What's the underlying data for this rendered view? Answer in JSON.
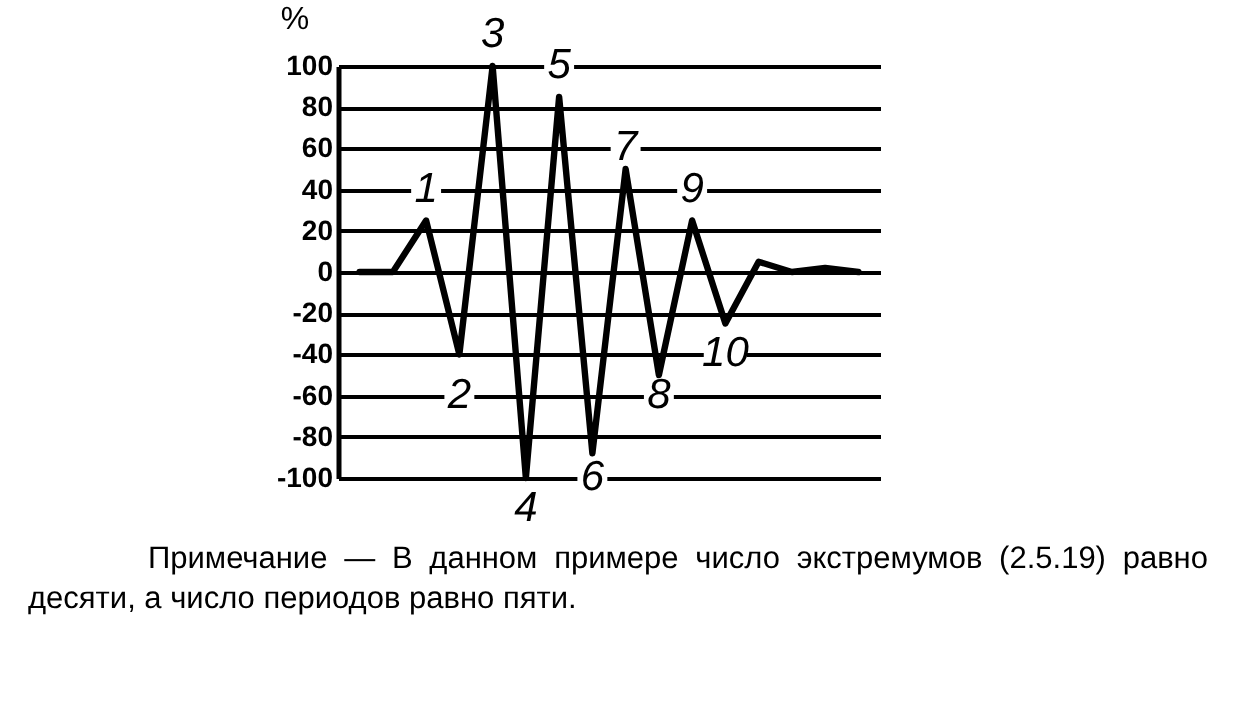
{
  "chart_data": {
    "type": "line",
    "ylabel": "%",
    "categories": [
      null,
      null,
      null,
      null,
      null,
      null,
      null,
      null,
      null,
      null,
      null,
      null,
      null,
      null,
      null,
      null
    ],
    "series": [
      {
        "color": "#000000",
        "values": [
          0,
          0,
          25,
          -40,
          100,
          -100,
          85,
          -88,
          50,
          -50,
          25,
          -25,
          5,
          0,
          2,
          0
        ]
      }
    ],
    "ylim": [
      -100,
      100
    ],
    "yticks": [
      -100,
      -80,
      -60,
      -40,
      -20,
      0,
      20,
      40,
      60,
      80,
      100
    ],
    "grid": "y",
    "tick_labels": "y",
    "marker": "none",
    "line_style": "solid",
    "annotations": [
      "1",
      "2",
      "3",
      "4",
      "5",
      "6",
      "7",
      "8",
      "9",
      "10",
      "Примечание — В данном примере число экстремумов (2.5.19) равно десяти, а число периодов равно пяти."
    ]
  }
}
